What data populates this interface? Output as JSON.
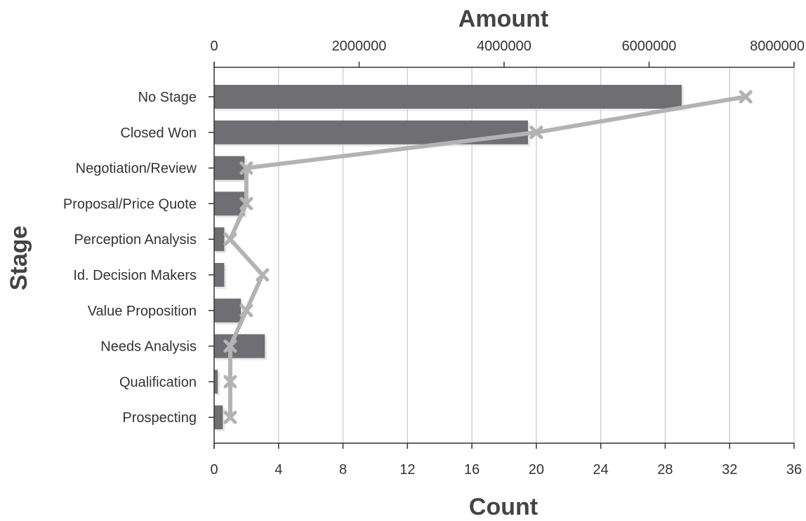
{
  "chart_data": {
    "type": "bar",
    "title": "",
    "categories": [
      "No Stage",
      "Closed Won",
      "Negotiation/Review",
      "Proposal/Price Quote",
      "Perception Analysis",
      "Id. Decision Makers",
      "Value Proposition",
      "Needs Analysis",
      "Qualification",
      "Prospecting"
    ],
    "series": [
      {
        "axis": "top",
        "mark": "bar",
        "values": [
          6450000,
          4330000,
          420000,
          420000,
          140000,
          140000,
          370000,
          700000,
          50000,
          120000
        ]
      },
      {
        "axis": "bottom",
        "mark": "line",
        "values": [
          33,
          20,
          2,
          2,
          1,
          3,
          2,
          1,
          1,
          1
        ]
      }
    ],
    "xlabel_top": "Amount",
    "xlabel_bottom": "Count",
    "ylabel": "Stage",
    "xlim_top": [
      0,
      8000000
    ],
    "xlim_bottom": [
      0,
      36
    ],
    "xticks_top": [
      "0",
      "2000000",
      "4000000",
      "6000000",
      "8000000"
    ],
    "xticks_bottom": [
      "0",
      "4",
      "8",
      "12",
      "16",
      "20",
      "24",
      "28",
      "32",
      "36"
    ],
    "grid": true,
    "legend": "none",
    "colors": {
      "bar": "#6f6f73",
      "line": "#b3b3b3",
      "grid": "#c9c9c9",
      "axis": "#333333"
    }
  }
}
